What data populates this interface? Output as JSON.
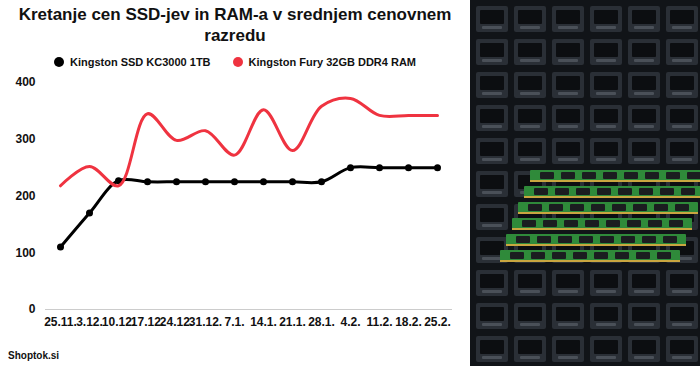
{
  "chart_data": {
    "type": "line",
    "title": "Kretanje cen SSD-jev in RAM-a v srednjem cenovnem razredu",
    "source": "Shoptok.si",
    "categories": [
      "25.11.",
      "3.12.",
      "10.12.",
      "17.12.",
      "24.12.",
      "31.12.",
      "7.1.",
      "14.1.",
      "21.1.",
      "28.1.",
      "4.2.",
      "11.2.",
      "18.2.",
      "25.2."
    ],
    "series": [
      {
        "name": "Kingston SSD KC3000 1TB",
        "color": "#000000",
        "marker": "circle",
        "values": [
          110,
          170,
          227,
          225,
          225,
          225,
          225,
          225,
          225,
          225,
          250,
          250,
          250,
          250
        ]
      },
      {
        "name": "Kingston Fury 32GB DDR4 RAM",
        "color": "#ef3340",
        "marker": "none",
        "values": [
          218,
          252,
          218,
          345,
          298,
          315,
          272,
          352,
          280,
          358,
          372,
          342,
          342,
          342
        ]
      }
    ],
    "ylim": [
      0,
      400
    ],
    "yticks": [
      0,
      100,
      200,
      300,
      400
    ],
    "grid": false,
    "legend": "top"
  }
}
